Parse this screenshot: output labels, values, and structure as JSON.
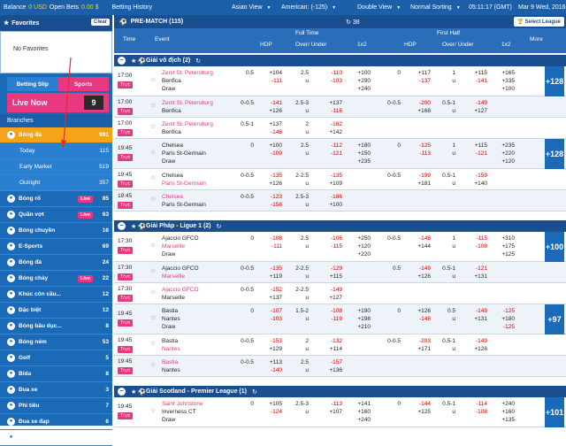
{
  "topbar": {
    "balance_label": "Balance",
    "balance_value": "0 USD",
    "open_bets_label": "Open Bets",
    "open_bets_value": "0.00 $",
    "betting_history": "Betting History",
    "view_mode": "Asian View",
    "odds_format": "American: (-125)",
    "double_view": "Double View",
    "sorting": "Normal Sorting",
    "clock": "05:11:17 (GMT)",
    "date": "Mar 9 Wed, 2016"
  },
  "sidebar": {
    "favorites_label": "Favorites",
    "clear_label": "Clear",
    "no_favorites": "No Favorites",
    "betting_slip": "Betting Slip",
    "sports_tab": "Sports",
    "live_now": "Live Now",
    "live_count": "9",
    "branches": "Branches",
    "items": [
      {
        "label": "Bóng đá",
        "count": "991",
        "style": "orange",
        "live": ""
      },
      {
        "label": "Today",
        "count": "115",
        "style": "sub",
        "live": ""
      },
      {
        "label": "Early Market",
        "count": "519",
        "style": "sub",
        "live": ""
      },
      {
        "label": "Outright",
        "count": "357",
        "style": "sub",
        "live": ""
      },
      {
        "label": "Bóng rổ",
        "count": "85",
        "style": "",
        "live": "Live"
      },
      {
        "label": "Quần vợt",
        "count": "63",
        "style": "",
        "live": "Live"
      },
      {
        "label": "Bóng chuyền",
        "count": "16",
        "style": "",
        "live": ""
      },
      {
        "label": "E-Sports",
        "count": "69",
        "style": "",
        "live": ""
      },
      {
        "label": "Bóng đá",
        "count": "24",
        "style": "",
        "live": ""
      },
      {
        "label": "Bóng chày",
        "count": "22",
        "style": "",
        "live": "Live"
      },
      {
        "label": "Khúc côn cầu...",
        "count": "12",
        "style": "",
        "live": ""
      },
      {
        "label": "Đặc biệt",
        "count": "12",
        "style": "",
        "live": ""
      },
      {
        "label": "Bóng bầu dục...",
        "count": "8",
        "style": "",
        "live": ""
      },
      {
        "label": "Bóng ném",
        "count": "53",
        "style": "",
        "live": ""
      },
      {
        "label": "Golf",
        "count": "5",
        "style": "",
        "live": ""
      },
      {
        "label": "Bida",
        "count": "8",
        "style": "",
        "live": ""
      },
      {
        "label": "Đua xe",
        "count": "3",
        "style": "",
        "live": ""
      },
      {
        "label": "Phi tiêu",
        "count": "7",
        "style": "",
        "live": ""
      },
      {
        "label": "Đua xe đạp",
        "count": "6",
        "style": "",
        "live": ""
      },
      {
        "label": "Đua mô tô",
        "count": "7",
        "style": "",
        "live": ""
      }
    ]
  },
  "main": {
    "header": "PRE-MATCH (115)",
    "count": "38",
    "select_league": "Select League",
    "cols": {
      "time": "Time",
      "event": "Event",
      "full_time": "Full Time",
      "first_half": "First Half",
      "hdp": "HDP",
      "ou": "Over/ Under",
      "x12": "1x2",
      "more": "More"
    },
    "truc": "Trực",
    "leagues": [
      {
        "name": "Giải vô địch (2)"
      },
      {
        "name": "Giải Pháp - Ligue 1 (2)"
      },
      {
        "name": "Giải Scotland - Premier League (1)"
      }
    ],
    "matches": [
      {
        "time": "17:00",
        "teams": [
          "Zenit St. Petersburg",
          "Benfica",
          "Draw"
        ],
        "pink": [
          0
        ],
        "hdp": [
          "0.5",
          ""
        ],
        "hdp_o": [
          "+104",
          "-111"
        ],
        "ou": [
          "2.5",
          "u"
        ],
        "ou_o": [
          "-110",
          "-103"
        ],
        "x": [
          "+100",
          "+290",
          "+240"
        ],
        "h_hdp": [
          "0",
          ""
        ],
        "h_hdp_o": [
          "+117",
          "-137"
        ],
        "h_ou": [
          "1",
          "u"
        ],
        "h_ou_o": [
          "+115",
          "-141"
        ],
        "h_x": [
          "+165",
          "+335",
          "+100"
        ],
        "more": "+128"
      },
      {
        "time": "17:00",
        "teams": [
          "Zenit St. Petersburg",
          "Benfica"
        ],
        "pink": [
          0
        ],
        "hdp": [
          "0-0.5",
          ""
        ],
        "hdp_o": [
          "-141",
          "+126"
        ],
        "ou": [
          "2.5-3",
          "u"
        ],
        "ou_o": [
          "+137",
          "-116"
        ],
        "x": [
          "",
          ""
        ],
        "h_hdp": [
          "0-0.5",
          ""
        ],
        "h_hdp_o": [
          "-200",
          "+168"
        ],
        "h_ou": [
          "0.5-1",
          "u"
        ],
        "h_ou_o": [
          "-149",
          "+127"
        ],
        "h_x": [
          "",
          ""
        ],
        "more": ""
      },
      {
        "time": "17:00",
        "teams": [
          "Zenit St. Petersburg",
          "Benfica"
        ],
        "pink": [
          0
        ],
        "hdp": [
          "0.5-1",
          ""
        ],
        "hdp_o": [
          "+137",
          "-148"
        ],
        "ou": [
          "2",
          "u"
        ],
        "ou_o": [
          "-162",
          "+142"
        ],
        "x": [
          "",
          ""
        ],
        "h_hdp": [
          "",
          ""
        ],
        "h_hdp_o": [
          "",
          ""
        ],
        "h_ou": [
          "",
          ""
        ],
        "h_ou_o": [
          "",
          ""
        ],
        "h_x": [
          "",
          ""
        ],
        "more": ""
      },
      {
        "time": "19:45",
        "teams": [
          "Chelsea",
          "Paris St-Germain",
          "Draw"
        ],
        "pink": [],
        "hdp": [
          "0",
          ""
        ],
        "hdp_o": [
          "+100",
          "-109"
        ],
        "ou": [
          "2.5",
          "u"
        ],
        "ou_o": [
          "-112",
          "-121"
        ],
        "x": [
          "+180",
          "+150",
          "+235"
        ],
        "h_hdp": [
          "0",
          ""
        ],
        "h_hdp_o": [
          "-125",
          "-113"
        ],
        "h_ou": [
          "1",
          "u"
        ],
        "h_ou_o": [
          "+115",
          "-121"
        ],
        "h_x": [
          "+235",
          "+220",
          "+120"
        ],
        "more": "+128"
      },
      {
        "time": "19:45",
        "teams": [
          "Chelsea",
          "Paris St-Germain"
        ],
        "pink": [
          1
        ],
        "hdp": [
          "0-0.5",
          ""
        ],
        "hdp_o": [
          "-135",
          "+126"
        ],
        "ou": [
          "2-2.5",
          "u"
        ],
        "ou_o": [
          "-135",
          "+109"
        ],
        "x": [
          "",
          ""
        ],
        "h_hdp": [
          "0-0.5",
          ""
        ],
        "h_hdp_o": [
          "-199",
          "+181"
        ],
        "h_ou": [
          "0.5-1",
          "u"
        ],
        "h_ou_o": [
          "-159",
          "+140"
        ],
        "h_x": [
          "",
          ""
        ],
        "more": ""
      },
      {
        "time": "19:45",
        "teams": [
          "Chelsea",
          "Paris St-Germain"
        ],
        "pink": [
          0
        ],
        "hdp": [
          "0-0.5",
          ""
        ],
        "hdp_o": [
          "-123",
          "-156"
        ],
        "ou": [
          "2.5-3",
          "u"
        ],
        "ou_o": [
          "-186",
          "+100"
        ],
        "x": [
          "",
          ""
        ],
        "h_hdp": [
          "",
          ""
        ],
        "h_hdp_o": [
          "",
          ""
        ],
        "h_ou": [
          "",
          ""
        ],
        "h_ou_o": [
          "",
          ""
        ],
        "h_x": [
          "",
          ""
        ],
        "more": ""
      },
      {
        "time": "17:30",
        "teams": [
          "Ajaccio GFCO",
          "Marseille",
          "Draw"
        ],
        "pink": [
          1
        ],
        "hdp": [
          "0",
          ""
        ],
        "hdp_o": [
          "-108",
          "-111"
        ],
        "ou": [
          "2.5",
          "u"
        ],
        "ou_o": [
          "-106",
          "-115"
        ],
        "x": [
          "+250",
          "+120",
          "+220"
        ],
        "h_hdp": [
          "0-0.5",
          ""
        ],
        "h_hdp_o": [
          "-148",
          "+144"
        ],
        "h_ou": [
          "1",
          "u"
        ],
        "h_ou_o": [
          "-115",
          "-108"
        ],
        "h_x": [
          "+310",
          "+175",
          "+125"
        ],
        "more": "+100"
      },
      {
        "time": "17:30",
        "teams": [
          "Ajaccio GFCO",
          "Marseille"
        ],
        "pink": [
          1
        ],
        "hdp": [
          "0-0.5",
          ""
        ],
        "hdp_o": [
          "-135",
          "+119"
        ],
        "ou": [
          "2-2.5",
          "u"
        ],
        "ou_o": [
          "-129",
          "+115"
        ],
        "x": [
          "",
          ""
        ],
        "h_hdp": [
          "0.5",
          ""
        ],
        "h_hdp_o": [
          "-149",
          "+126"
        ],
        "h_ou": [
          "0.5-1",
          "u"
        ],
        "h_ou_o": [
          "-121",
          "+131"
        ],
        "h_x": [
          "",
          ""
        ],
        "more": ""
      },
      {
        "time": "17:30",
        "teams": [
          "Ajaccio GFCO",
          "Marseille"
        ],
        "pink": [
          0
        ],
        "hdp": [
          "0-0.5",
          ""
        ],
        "hdp_o": [
          "-152",
          "+137"
        ],
        "ou": [
          "2-2.5",
          "u"
        ],
        "ou_o": [
          "-149",
          "+127"
        ],
        "x": [
          "",
          ""
        ],
        "h_hdp": [
          "",
          ""
        ],
        "h_hdp_o": [
          "",
          ""
        ],
        "h_ou": [
          "",
          ""
        ],
        "h_ou_o": [
          "",
          ""
        ],
        "h_x": [
          "",
          ""
        ],
        "more": ""
      },
      {
        "time": "19:45",
        "teams": [
          "Bastia",
          "Nantes",
          "Draw"
        ],
        "pink": [],
        "hdp": [
          "0",
          ""
        ],
        "hdp_o": [
          "-107",
          "-103"
        ],
        "ou": [
          "1.5-2",
          "u"
        ],
        "ou_o": [
          "-108",
          "-119"
        ],
        "x": [
          "+190",
          "+198",
          "+210"
        ],
        "h_hdp": [
          "0",
          ""
        ],
        "h_hdp_o": [
          "+126",
          "-148"
        ],
        "h_ou": [
          "0.5",
          "u"
        ],
        "h_ou_o": [
          "-149",
          "+131"
        ],
        "h_x": [
          "-125",
          "+180",
          "-125"
        ],
        "more": "+97"
      },
      {
        "time": "19:45",
        "teams": [
          "Bastia",
          "Nantes"
        ],
        "pink": [
          1
        ],
        "hdp": [
          "0-0.5",
          ""
        ],
        "hdp_o": [
          "-153",
          "+129"
        ],
        "ou": [
          "2",
          "u"
        ],
        "ou_o": [
          "-132",
          "+114"
        ],
        "x": [
          "",
          ""
        ],
        "h_hdp": [
          "0-0.5",
          ""
        ],
        "h_hdp_o": [
          "-203",
          "+171"
        ],
        "h_ou": [
          "0.5-1",
          "u"
        ],
        "h_ou_o": [
          "-149",
          "+128"
        ],
        "h_x": [
          "",
          ""
        ],
        "more": ""
      },
      {
        "time": "19:45",
        "teams": [
          "Bastia",
          "Nantes"
        ],
        "pink": [
          0
        ],
        "hdp": [
          "0-0.5",
          ""
        ],
        "hdp_o": [
          "+113",
          "-140"
        ],
        "ou": [
          "2.5",
          "u"
        ],
        "ou_o": [
          "-157",
          "+136"
        ],
        "x": [
          "",
          ""
        ],
        "h_hdp": [
          "",
          ""
        ],
        "h_hdp_o": [
          "",
          ""
        ],
        "h_ou": [
          "",
          ""
        ],
        "h_ou_o": [
          "",
          ""
        ],
        "h_x": [
          "",
          ""
        ],
        "more": ""
      },
      {
        "time": "19:45",
        "teams": [
          "Saint Johnstone",
          "Inverness CT",
          "Draw"
        ],
        "pink": [
          0
        ],
        "hdp": [
          "0",
          ""
        ],
        "hdp_o": [
          "+105",
          "-124"
        ],
        "ou": [
          "2.5-3",
          "u"
        ],
        "ou_o": [
          "-113",
          "+107"
        ],
        "x": [
          "+141",
          "+160",
          "+240"
        ],
        "h_hdp": [
          "0",
          ""
        ],
        "h_hdp_o": [
          "-144",
          "+125"
        ],
        "h_ou": [
          "0.5-1",
          "u"
        ],
        "h_ou_o": [
          "-114",
          "-108"
        ],
        "h_x": [
          "+240",
          "+160",
          "+135"
        ],
        "more": "+101"
      }
    ]
  },
  "colors": {
    "accent": "#1a4f8f",
    "pink": "#e8387f",
    "orange": "#f5a31a",
    "red_odds": "#cc0000"
  }
}
